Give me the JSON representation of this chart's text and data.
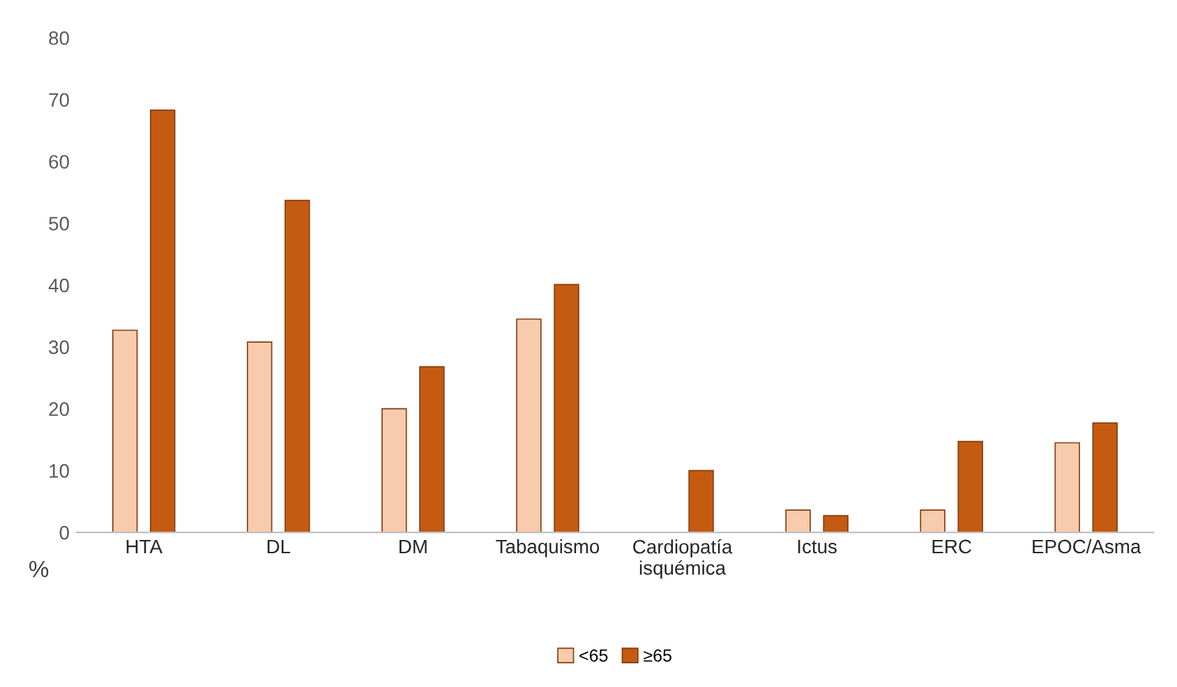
{
  "chart_data": {
    "type": "bar",
    "ylabel": "%",
    "categories": [
      "HTA",
      "DL",
      "DM",
      "Tabaquismo",
      "Cardiopatía\nisquémica",
      "Ictus",
      "ERC",
      "EPOC/Asma"
    ],
    "series": [
      {
        "name": "<65",
        "color": "#f8cbad",
        "values": [
          32.7,
          30.8,
          20,
          34.5,
          null,
          3.6,
          3.6,
          14.5
        ]
      },
      {
        "name": "≥65",
        "color": "#c55a11",
        "values": [
          68.3,
          53.7,
          26.8,
          40.1,
          10,
          2.7,
          14.7,
          17.7
        ]
      }
    ],
    "ylim": [
      0,
      80
    ],
    "yticks": [
      0,
      10,
      20,
      30,
      40,
      50,
      60,
      70,
      80
    ],
    "grid": false,
    "legend": "bottom"
  }
}
